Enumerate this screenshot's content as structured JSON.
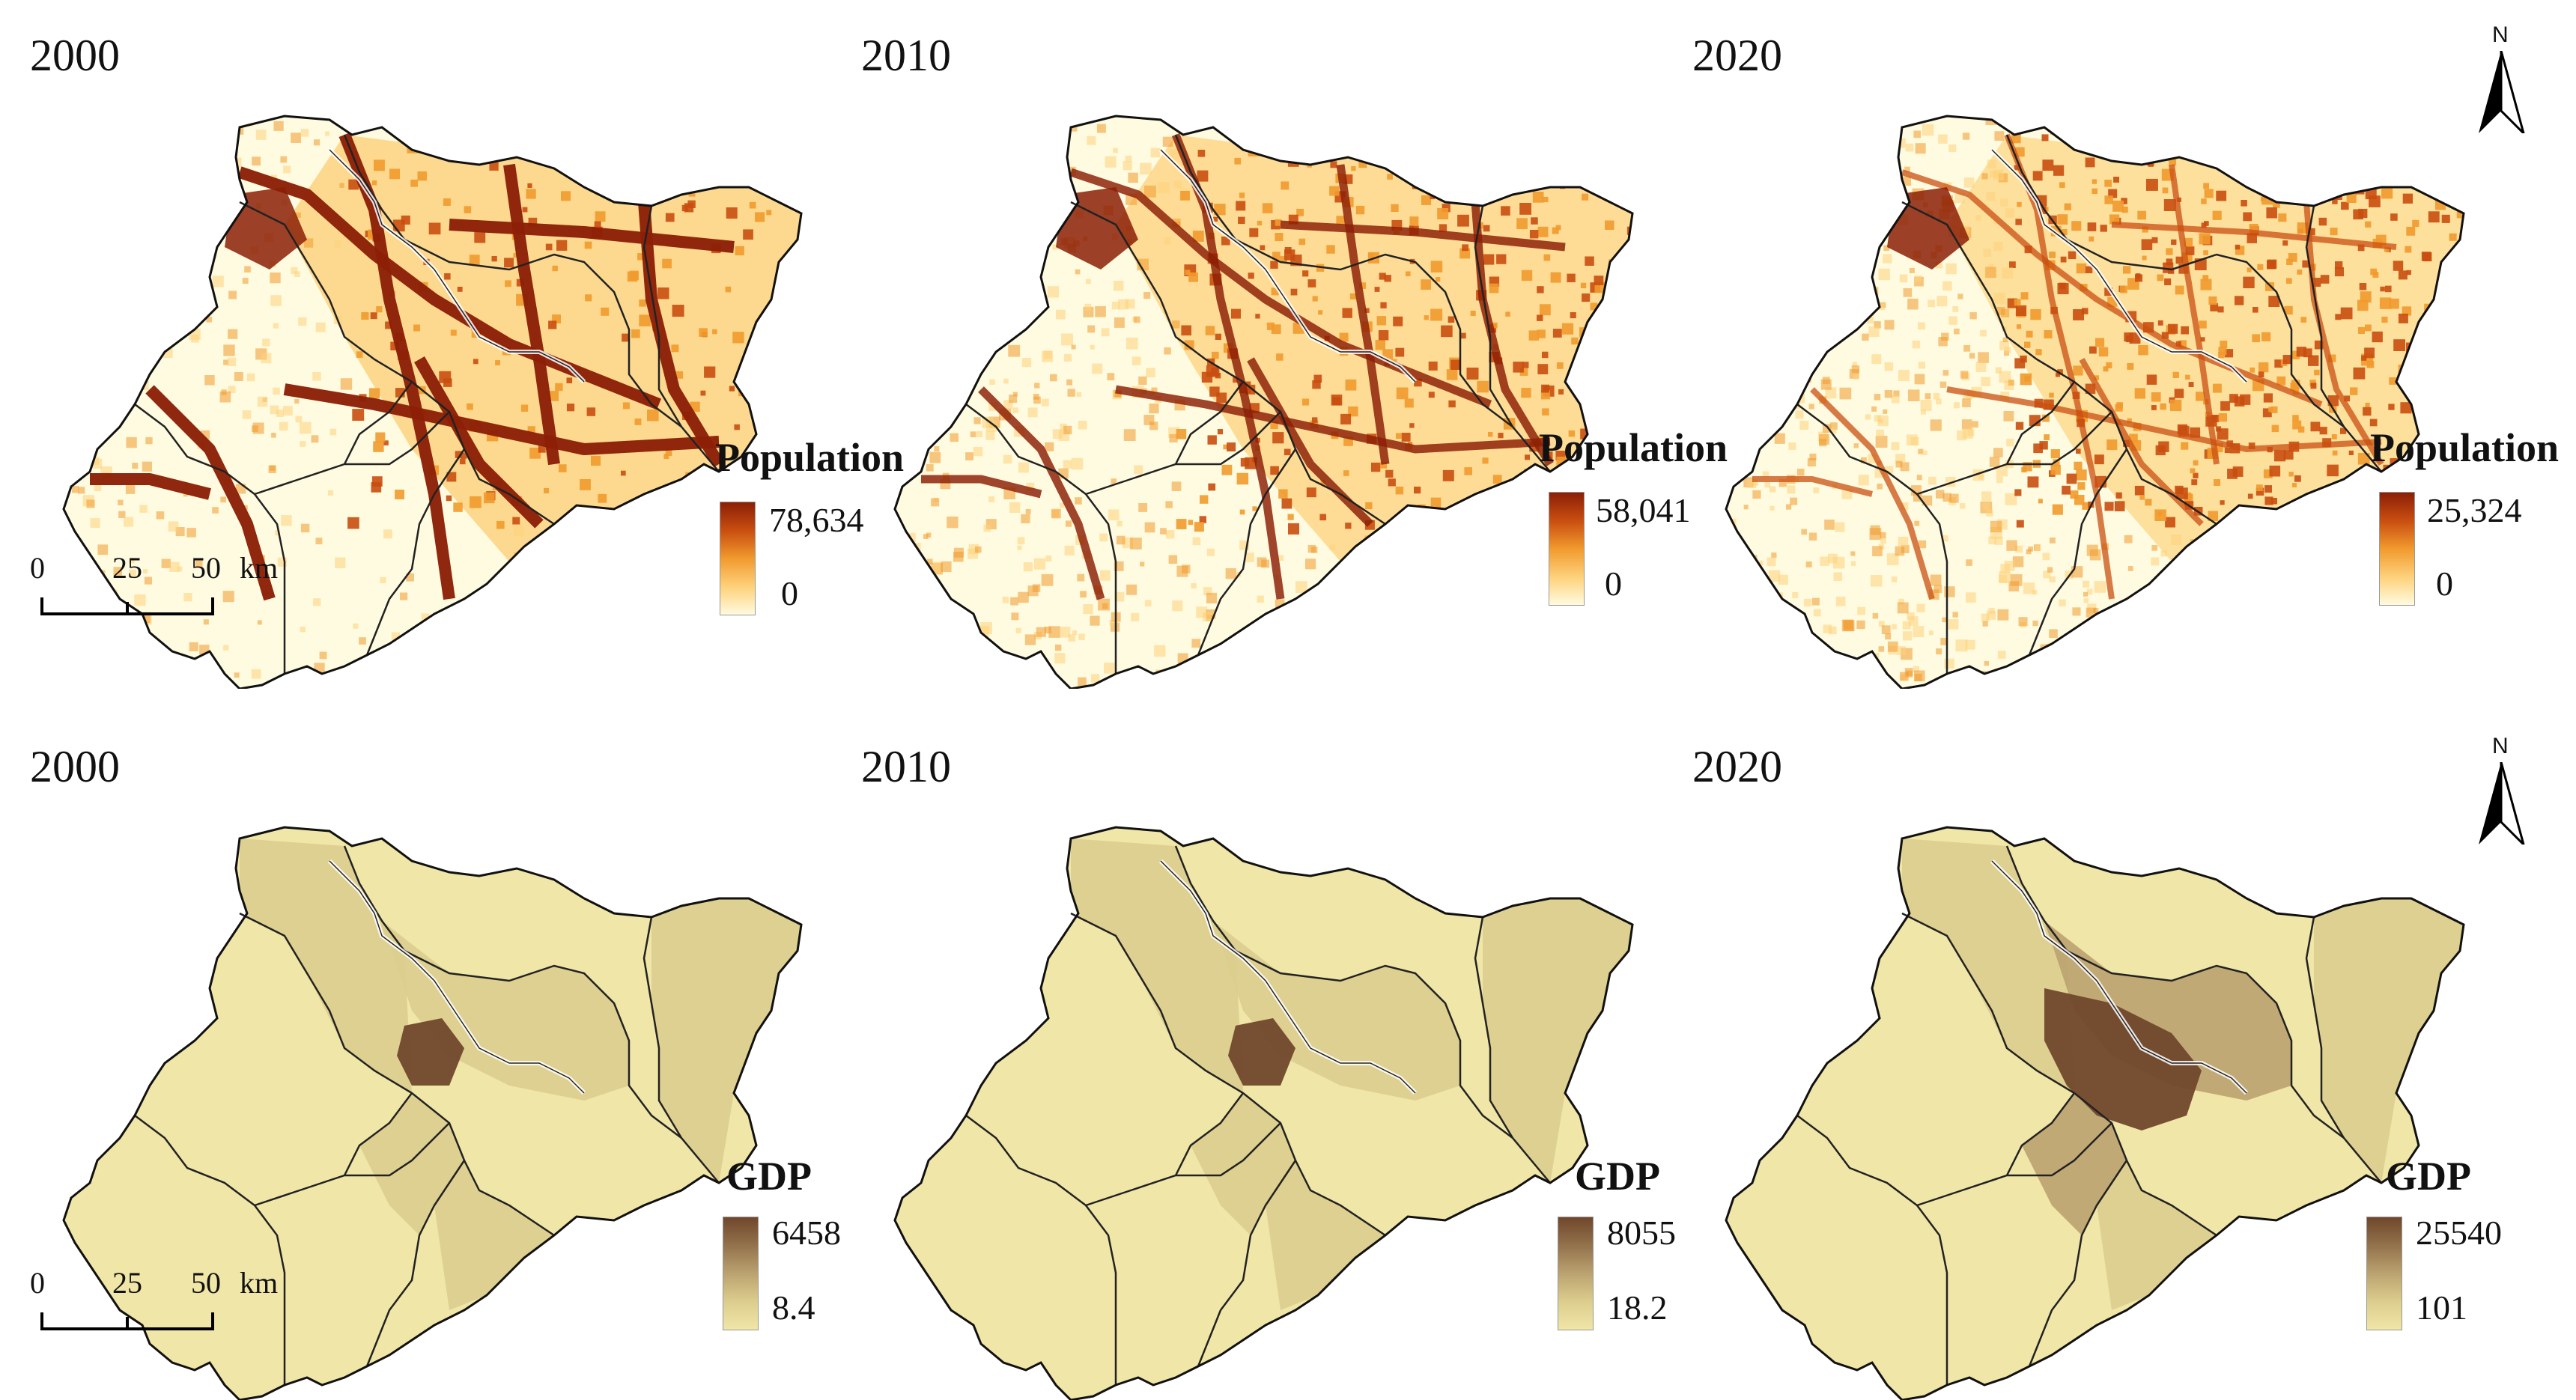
{
  "rows": [
    {
      "id": "population",
      "legend_title": "Population",
      "panels": [
        {
          "year": "2000",
          "max": "78,634",
          "min": "0",
          "intensity": 0.95
        },
        {
          "year": "2010",
          "max": "58,041",
          "min": "0",
          "intensity": 0.8
        },
        {
          "year": "2020",
          "max": "25,324",
          "min": "0",
          "intensity": 0.7
        }
      ],
      "ramp_colors": [
        "#fffbe0",
        "#fdd17a",
        "#f19a2e",
        "#c94e10",
        "#8b1f06"
      ]
    },
    {
      "id": "gdp",
      "legend_title": "GDP",
      "panels": [
        {
          "year": "2000",
          "max": "6458",
          "min": "8.4",
          "intensity": 0.25
        },
        {
          "year": "2010",
          "max": "8055",
          "min": "18.2",
          "intensity": 0.35
        },
        {
          "year": "2020",
          "max": "25540",
          "min": "101",
          "intensity": 0.55
        }
      ],
      "ramp_colors": [
        "#f0e6a8",
        "#dccd8d",
        "#bba270",
        "#93724c",
        "#70472c"
      ]
    }
  ],
  "scalebar": {
    "ticks": [
      "0",
      "25",
      "50"
    ],
    "unit": "km"
  },
  "north_arrow": {
    "letter": "N"
  }
}
